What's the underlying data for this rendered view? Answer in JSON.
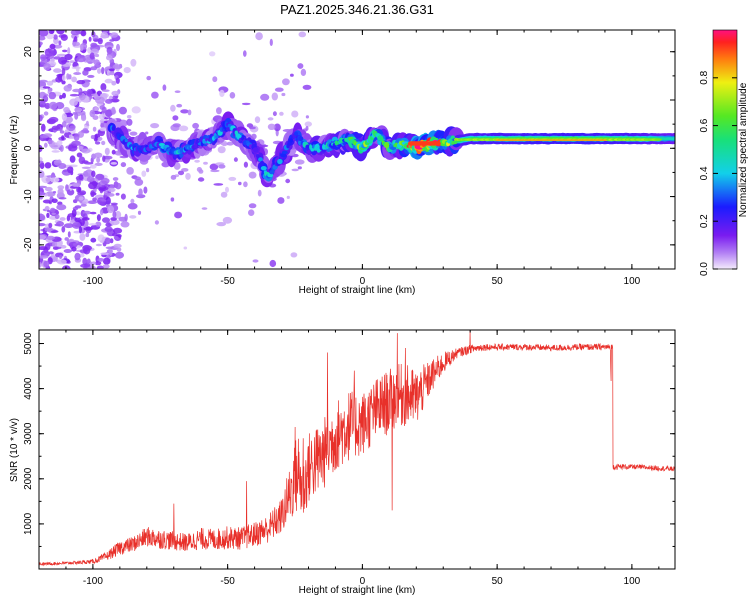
{
  "title": "PAZ1.2025.346.21.36.G31",
  "colors": {
    "snr_line": "#e8302a",
    "ridge_purple": "#7a1cf0",
    "ridge_blue": "#0a3cff",
    "ridge_cyan": "#19d6dc",
    "ridge_green": "#33dd33",
    "ridge_yellow": "#f2f20f",
    "ridge_red": "#ff2a1a"
  },
  "chart_data": [
    {
      "type": "heatmap",
      "xlabel": "Height of straight line (km)",
      "ylabel": "Frequency (Hz)",
      "xlim": [
        -120,
        116
      ],
      "ylim": [
        -25,
        24.5
      ],
      "xticks": [
        -100,
        -50,
        0,
        50,
        100
      ],
      "yticks": [
        -20,
        -10,
        0,
        10,
        20
      ],
      "colorbar": {
        "label": "Normalized spectral amplitude",
        "range": [
          0,
          1
        ],
        "ticks": [
          0.0,
          0.2,
          0.4,
          0.6,
          0.8
        ],
        "tick_labels": [
          "0.0",
          "0.2",
          "0.4",
          "0.6",
          "0.8"
        ],
        "colormap": "rainbow (white-violet to magenta-red)"
      },
      "ridge": {
        "description": "dominant frequency ridge",
        "x": [
          -93,
          -85,
          -80,
          -75,
          -70,
          -65,
          -60,
          -55,
          -50,
          -45,
          -40,
          -35,
          -30,
          -25,
          -20,
          -15,
          -10,
          -5,
          0,
          5,
          10,
          15,
          20,
          25,
          30,
          40,
          60,
          80,
          100,
          116
        ],
        "frequency": [
          4,
          0,
          0,
          1,
          -1,
          0,
          1,
          2,
          5,
          2,
          0,
          -6,
          -2,
          3,
          0,
          0,
          1,
          2,
          0,
          3,
          0,
          1,
          0,
          1,
          1,
          2,
          2,
          2,
          2,
          2
        ],
        "amplitude": [
          0.25,
          0.3,
          0.25,
          0.3,
          0.35,
          0.3,
          0.28,
          0.3,
          0.35,
          0.3,
          0.25,
          0.35,
          0.3,
          0.3,
          0.35,
          0.35,
          0.4,
          0.45,
          0.55,
          0.5,
          0.5,
          0.55,
          0.85,
          0.95,
          0.6,
          0.55,
          0.6,
          0.62,
          0.58,
          0.45
        ]
      }
    },
    {
      "type": "line",
      "xlabel": "Height of straight line (km)",
      "ylabel": "SNR (10 * v/v)",
      "xlim": [
        -120,
        116
      ],
      "ylim": [
        0,
        5300
      ],
      "xticks": [
        -100,
        -50,
        0,
        50,
        100
      ],
      "yticks": [
        1000,
        2000,
        3000,
        4000,
        5000
      ],
      "series": [
        {
          "x": [
            -120,
            -110,
            -100,
            -95,
            -90,
            -85,
            -80,
            -75,
            -70,
            -65,
            -60,
            -55,
            -50,
            -45,
            -40,
            -35,
            -30,
            -26,
            -24,
            -22,
            -20,
            -15,
            -10,
            -5,
            0,
            5,
            10,
            15,
            20,
            25,
            30,
            35,
            40,
            45,
            50,
            60,
            70,
            80,
            90,
            92,
            93,
            100,
            110,
            116
          ],
          "y": [
            100,
            120,
            150,
            250,
            420,
            500,
            650,
            600,
            560,
            520,
            600,
            580,
            620,
            600,
            680,
            800,
            1050,
            1600,
            1900,
            1500,
            2000,
            2250,
            2700,
            2950,
            3000,
            3300,
            3500,
            3650,
            3600,
            4100,
            4500,
            4750,
            4850,
            4900,
            4900,
            4900,
            4880,
            4900,
            4900,
            4900,
            2250,
            2250,
            2220,
            2200
          ],
          "noise_level": [
            40,
            40,
            60,
            120,
            200,
            220,
            280,
            280,
            260,
            260,
            300,
            300,
            320,
            320,
            350,
            400,
            500,
            900,
            1200,
            900,
            1000,
            1000,
            1000,
            1000,
            900,
            900,
            900,
            900,
            800,
            500,
            300,
            140,
            120,
            100,
            90,
            90,
            90,
            90,
            90,
            80,
            80,
            70,
            70,
            70
          ],
          "spikes": [
            {
              "x": -25,
              "y": 3150
            },
            {
              "x": -22,
              "y": 2900
            },
            {
              "x": -13,
              "y": 4800
            },
            {
              "x": -3,
              "y": 4400
            },
            {
              "x": 13,
              "y": 5230
            },
            {
              "x": 11,
              "y": 1300
            },
            {
              "x": 16,
              "y": 4900
            },
            {
              "x": 40,
              "y": 5300
            },
            {
              "x": -70,
              "y": 1450
            },
            {
              "x": -43,
              "y": 1950
            }
          ]
        }
      ]
    }
  ]
}
